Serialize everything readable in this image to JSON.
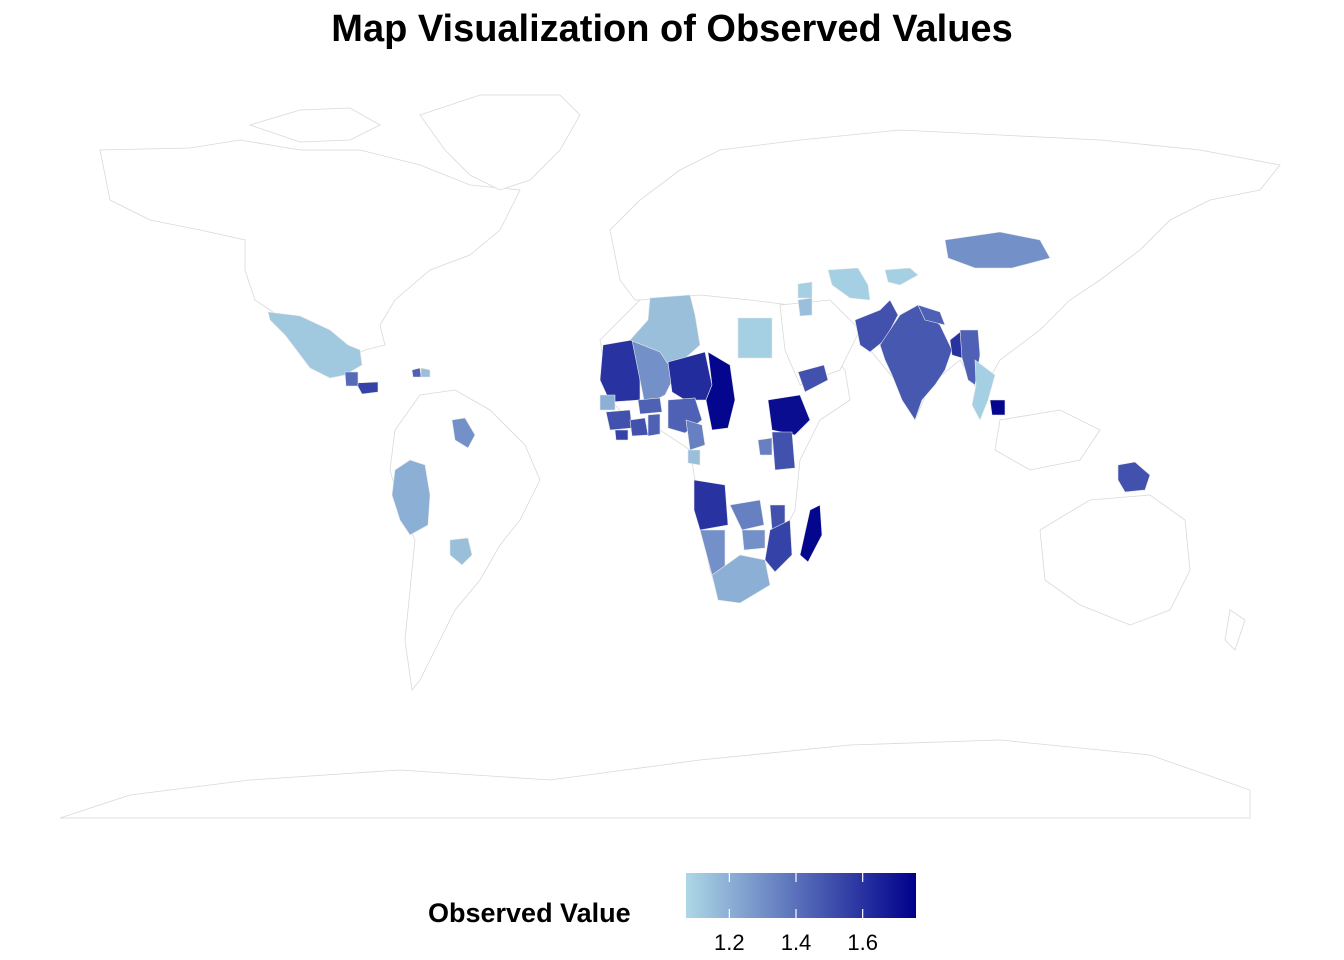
{
  "title": "Map Visualization of Observed Values",
  "legend": {
    "title": "Observed Value",
    "min": 1.07,
    "max": 1.76,
    "ticks": [
      1.2,
      1.4,
      1.6
    ],
    "tick_labels": [
      "1.2",
      "1.4",
      "1.6"
    ],
    "color_low": "#add8e6",
    "color_high": "#00008b"
  },
  "map_data": {
    "type": "choropleth",
    "no_data_color": "#ffffff",
    "border_color": "#d3d3d3",
    "regions": [
      {
        "name": "Mexico",
        "value": 1.12
      },
      {
        "name": "Honduras",
        "value": 1.55
      },
      {
        "name": "Guatemala",
        "value": 1.42
      },
      {
        "name": "Haiti",
        "value": 1.45
      },
      {
        "name": "Dominican Republic",
        "value": 1.15
      },
      {
        "name": "Guyana",
        "value": 1.3
      },
      {
        "name": "Peru",
        "value": 1.2
      },
      {
        "name": "Paraguay",
        "value": 1.15
      },
      {
        "name": "Mauritania",
        "value": 1.6
      },
      {
        "name": "Mali",
        "value": 1.3
      },
      {
        "name": "Algeria",
        "value": 1.15
      },
      {
        "name": "Niger",
        "value": 1.62
      },
      {
        "name": "Chad",
        "value": 1.74
      },
      {
        "name": "Egypt",
        "value": 1.1
      },
      {
        "name": "Senegal",
        "value": 1.2
      },
      {
        "name": "Burkina Faso",
        "value": 1.45
      },
      {
        "name": "Guinea",
        "value": 1.5
      },
      {
        "name": "Sierra Leone",
        "value": 1.55
      },
      {
        "name": "Cote d'Ivoire",
        "value": 1.5
      },
      {
        "name": "Ghana",
        "value": 1.45
      },
      {
        "name": "Nigeria",
        "value": 1.45
      },
      {
        "name": "Cameroon",
        "value": 1.35
      },
      {
        "name": "Gabon",
        "value": 1.15
      },
      {
        "name": "Ethiopia",
        "value": 1.72
      },
      {
        "name": "Yemen",
        "value": 1.5
      },
      {
        "name": "Uganda",
        "value": 1.35
      },
      {
        "name": "Kenya",
        "value": 1.5
      },
      {
        "name": "Angola",
        "value": 1.6
      },
      {
        "name": "Zambia",
        "value": 1.35
      },
      {
        "name": "Malawi",
        "value": 1.5
      },
      {
        "name": "Mozambique",
        "value": 1.55
      },
      {
        "name": "Zimbabwe",
        "value": 1.3
      },
      {
        "name": "Namibia",
        "value": 1.3
      },
      {
        "name": "South Africa",
        "value": 1.2
      },
      {
        "name": "Madagascar",
        "value": 1.74
      },
      {
        "name": "Jordan",
        "value": 1.15
      },
      {
        "name": "Syria",
        "value": 1.1
      },
      {
        "name": "Uzbekistan",
        "value": 1.1
      },
      {
        "name": "Kyrgyzstan",
        "value": 1.1
      },
      {
        "name": "Mongolia",
        "value": 1.3
      },
      {
        "name": "Pakistan",
        "value": 1.5
      },
      {
        "name": "India",
        "value": 1.48
      },
      {
        "name": "Nepal",
        "value": 1.45
      },
      {
        "name": "Bangladesh",
        "value": 1.6
      },
      {
        "name": "Myanmar",
        "value": 1.45
      },
      {
        "name": "Thailand",
        "value": 1.1
      },
      {
        "name": "Cambodia",
        "value": 1.74
      },
      {
        "name": "Papua New Guinea",
        "value": 1.5
      }
    ]
  }
}
